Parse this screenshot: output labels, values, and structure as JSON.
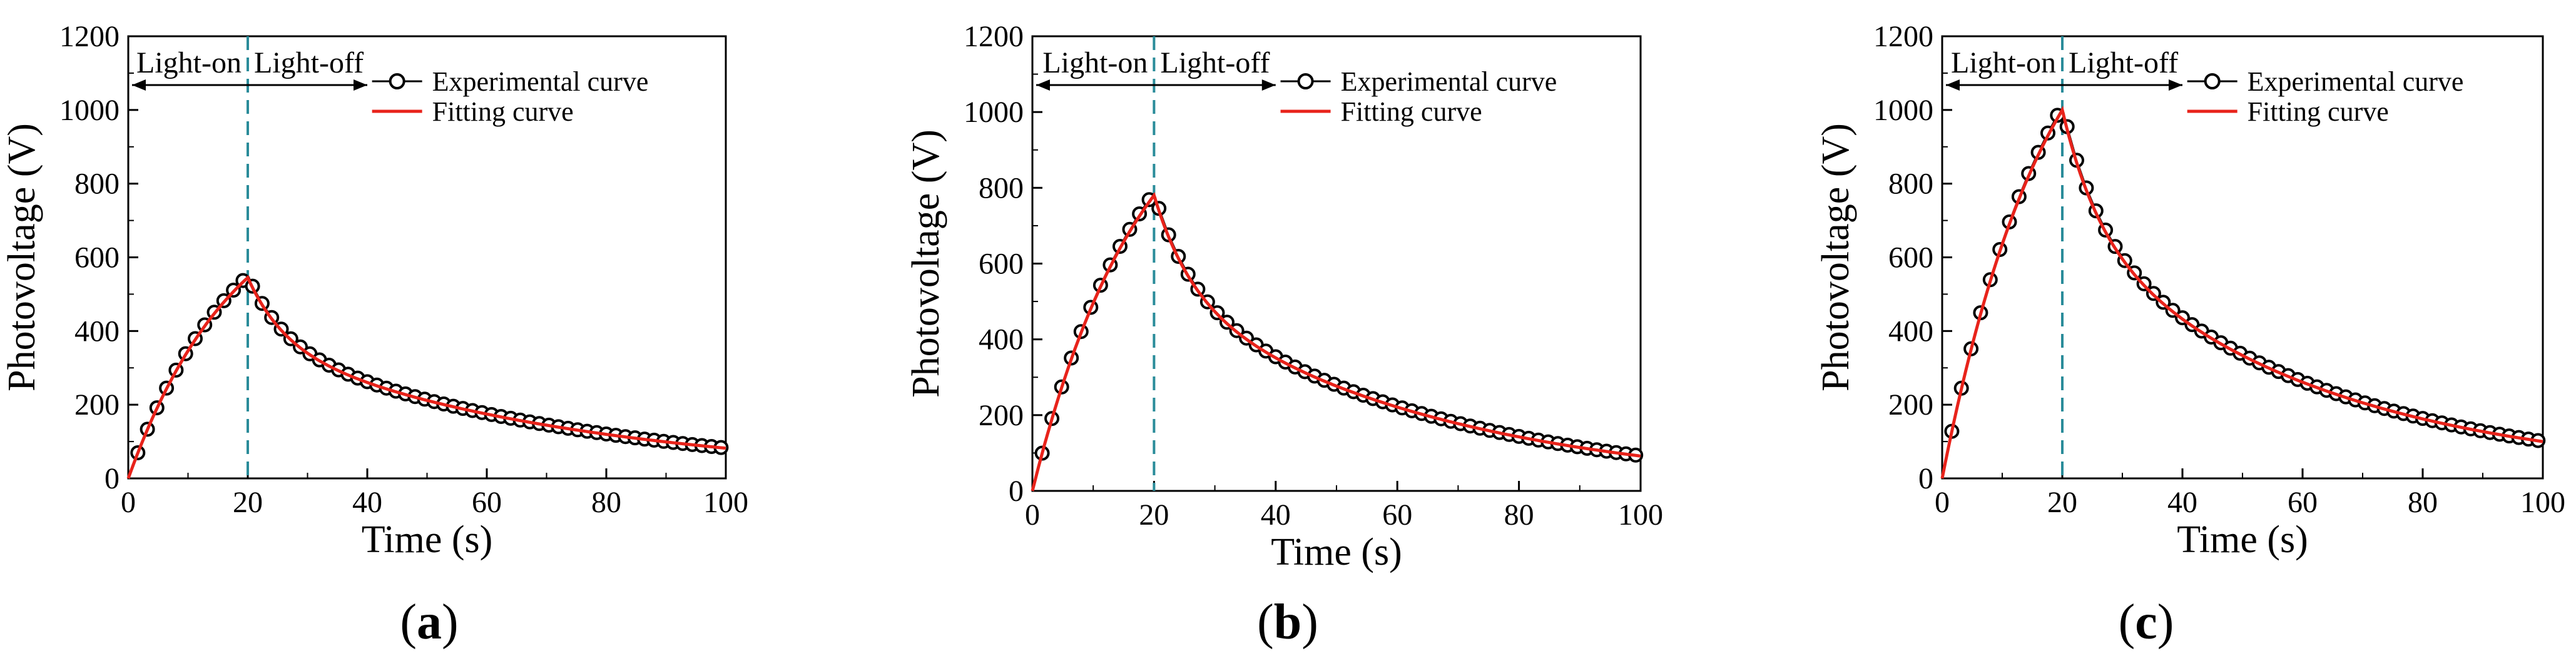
{
  "chart_data": [
    {
      "panel_label": "a",
      "type": "line",
      "xlabel": "Time (s)",
      "ylabel": "Photovoltage (V)",
      "xlim": [
        0,
        100
      ],
      "ylim": [
        0,
        1200
      ],
      "x_ticks": [
        0,
        20,
        40,
        60,
        80,
        100
      ],
      "y_ticks": [
        0,
        200,
        400,
        600,
        800,
        1000,
        1200
      ],
      "peak_value": 545,
      "final_value": 82,
      "switch_time": 20,
      "annotations": {
        "light_on": "Light-on",
        "light_off": "Light-off",
        "arrow_range": [
          0,
          40
        ]
      },
      "legend": {
        "position": "top-right",
        "entries": [
          "Experimental curve",
          "Fitting curve"
        ]
      },
      "series": [
        {
          "name": "Experimental curve",
          "style": "open-circles-line",
          "color": "#000000"
        },
        {
          "name": "Fitting curve",
          "style": "line",
          "color": "#e8231b"
        }
      ]
    },
    {
      "panel_label": "b",
      "type": "line",
      "xlabel": "Time (s)",
      "ylabel": "Photovoltage (V)",
      "xlim": [
        0,
        100
      ],
      "ylim": [
        0,
        1200
      ],
      "x_ticks": [
        0,
        20,
        40,
        60,
        80,
        100
      ],
      "y_ticks": [
        0,
        200,
        400,
        600,
        800,
        1000,
        1200
      ],
      "peak_value": 780,
      "final_value": 92,
      "switch_time": 20,
      "annotations": {
        "light_on": "Light-on",
        "light_off": "Light-off",
        "arrow_range": [
          0,
          40
        ]
      },
      "legend": {
        "position": "top-right",
        "entries": [
          "Experimental curve",
          "Fitting curve"
        ]
      },
      "series": [
        {
          "name": "Experimental curve",
          "style": "open-circles-line",
          "color": "#000000"
        },
        {
          "name": "Fitting curve",
          "style": "line",
          "color": "#e8231b"
        }
      ]
    },
    {
      "panel_label": "c",
      "type": "line",
      "xlabel": "Time (s)",
      "ylabel": "Photovoltage (V)",
      "xlim": [
        0,
        100
      ],
      "ylim": [
        0,
        1200
      ],
      "x_ticks": [
        0,
        20,
        40,
        60,
        80,
        100
      ],
      "y_ticks": [
        0,
        200,
        400,
        600,
        800,
        1000,
        1200
      ],
      "peak_value": 1000,
      "final_value": 100,
      "switch_time": 20,
      "annotations": {
        "light_on": "Light-on",
        "light_off": "Light-off",
        "arrow_range": [
          0,
          40
        ]
      },
      "legend": {
        "position": "top-right",
        "entries": [
          "Experimental curve",
          "Fitting curve"
        ]
      },
      "series": [
        {
          "name": "Experimental curve",
          "style": "open-circles-line",
          "color": "#000000"
        },
        {
          "name": "Fitting curve",
          "style": "line",
          "color": "#e8231b"
        }
      ]
    }
  ],
  "colors": {
    "dashed_line": "#2a8c9a",
    "fit": "#e8231b",
    "exp": "#000000"
  }
}
